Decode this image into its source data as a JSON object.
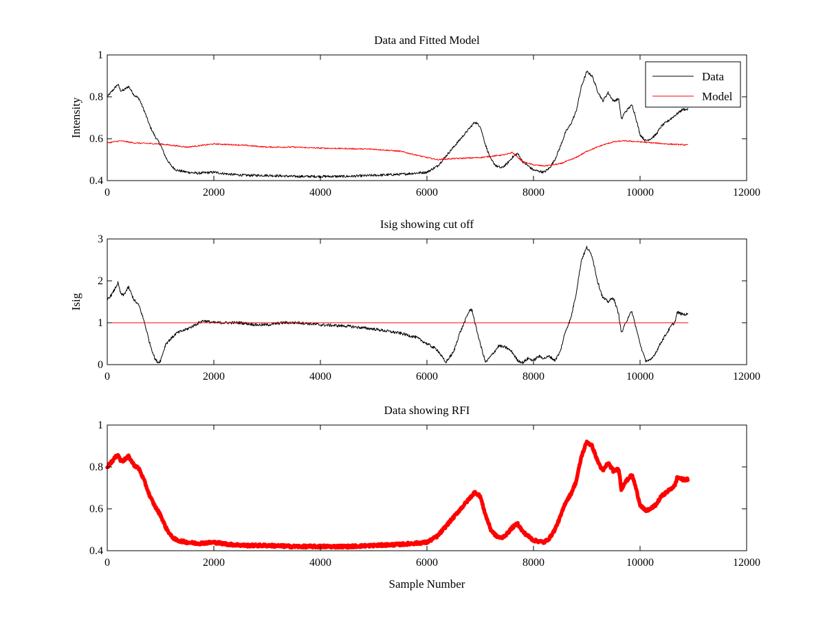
{
  "chart_data": [
    {
      "type": "line",
      "title": "Data and Fitted Model",
      "xlabel": "",
      "ylabel": "Intensity",
      "xlim": [
        0,
        12000
      ],
      "ylim": [
        0.4,
        1.0
      ],
      "xticks": [
        0,
        2000,
        4000,
        6000,
        8000,
        10000,
        12000
      ],
      "yticks": [
        0.4,
        0.6,
        0.8,
        1.0
      ],
      "ytick_labels": [
        "0.4",
        "0.6",
        "0.8",
        "1"
      ],
      "grid": false,
      "legend": {
        "position": "top-right",
        "entries": [
          "Data",
          "Model"
        ]
      },
      "series": [
        {
          "name": "Data",
          "color": "#000000",
          "noise": 0.006,
          "x": [
            0,
            100,
            200,
            250,
            300,
            400,
            500,
            600,
            700,
            800,
            900,
            1000,
            1100,
            1200,
            1300,
            1500,
            1700,
            2000,
            2300,
            2600,
            3000,
            3500,
            4000,
            4500,
            5000,
            5500,
            6000,
            6200,
            6400,
            6600,
            6800,
            6900,
            7000,
            7100,
            7200,
            7300,
            7400,
            7500,
            7600,
            7700,
            7800,
            8000,
            8200,
            8300,
            8400,
            8500,
            8600,
            8700,
            8800,
            8900,
            9000,
            9100,
            9200,
            9300,
            9400,
            9500,
            9600,
            9650,
            9700,
            9800,
            9850,
            9900,
            10000,
            10100,
            10200,
            10300,
            10400,
            10500,
            10600,
            10700,
            10800,
            10900
          ],
          "y": [
            0.8,
            0.83,
            0.86,
            0.83,
            0.83,
            0.85,
            0.81,
            0.79,
            0.73,
            0.66,
            0.61,
            0.57,
            0.51,
            0.47,
            0.45,
            0.44,
            0.435,
            0.44,
            0.43,
            0.425,
            0.425,
            0.42,
            0.42,
            0.42,
            0.425,
            0.43,
            0.44,
            0.47,
            0.53,
            0.59,
            0.65,
            0.68,
            0.66,
            0.57,
            0.5,
            0.47,
            0.46,
            0.48,
            0.51,
            0.53,
            0.49,
            0.45,
            0.44,
            0.46,
            0.5,
            0.56,
            0.63,
            0.67,
            0.73,
            0.85,
            0.92,
            0.9,
            0.83,
            0.78,
            0.82,
            0.78,
            0.79,
            0.69,
            0.72,
            0.75,
            0.76,
            0.72,
            0.62,
            0.59,
            0.6,
            0.62,
            0.66,
            0.68,
            0.7,
            0.72,
            0.74,
            0.74
          ]
        },
        {
          "name": "Model",
          "color": "#ff0000",
          "noise": 0.003,
          "x": [
            0,
            250,
            500,
            1000,
            1500,
            2000,
            2500,
            3000,
            3500,
            4000,
            5000,
            5500,
            6000,
            6200,
            6500,
            7000,
            7500,
            7600,
            7800,
            8000,
            8200,
            8500,
            8800,
            9000,
            9300,
            9500,
            9700,
            10000,
            10500,
            10900
          ],
          "y": [
            0.58,
            0.59,
            0.58,
            0.575,
            0.56,
            0.575,
            0.57,
            0.56,
            0.56,
            0.555,
            0.55,
            0.54,
            0.51,
            0.5,
            0.505,
            0.51,
            0.525,
            0.535,
            0.49,
            0.475,
            0.47,
            0.48,
            0.51,
            0.54,
            0.57,
            0.585,
            0.59,
            0.585,
            0.575,
            0.57
          ]
        }
      ]
    },
    {
      "type": "line",
      "title": "Isig showing cut off",
      "xlabel": "",
      "ylabel": "Isig",
      "xlim": [
        0,
        12000
      ],
      "ylim": [
        0,
        3
      ],
      "xticks": [
        0,
        2000,
        4000,
        6000,
        8000,
        10000,
        12000
      ],
      "yticks": [
        0,
        1,
        2,
        3
      ],
      "ytick_labels": [
        "0",
        "1",
        "2",
        "3"
      ],
      "grid": false,
      "series": [
        {
          "color": "#000000",
          "noise": 0.035,
          "x": [
            0,
            100,
            200,
            250,
            300,
            400,
            500,
            600,
            700,
            800,
            900,
            960,
            1000,
            1100,
            1300,
            1500,
            1800,
            2000,
            2200,
            2500,
            2800,
            3000,
            3300,
            3600,
            4000,
            4500,
            5000,
            5500,
            5800,
            6000,
            6200,
            6350,
            6500,
            6600,
            6700,
            6800,
            6850,
            6900,
            7000,
            7100,
            7200,
            7350,
            7500,
            7600,
            7700,
            7800,
            7900,
            8000,
            8100,
            8200,
            8300,
            8400,
            8500,
            8600,
            8700,
            8800,
            8900,
            9000,
            9100,
            9200,
            9300,
            9400,
            9500,
            9600,
            9650,
            9700,
            9800,
            9850,
            9900,
            10000,
            10100,
            10200,
            10300,
            10400,
            10500,
            10600,
            10650,
            10700,
            10800,
            10900
          ],
          "y": [
            1.55,
            1.7,
            1.95,
            1.7,
            1.65,
            1.85,
            1.55,
            1.4,
            1.0,
            0.5,
            0.12,
            0.05,
            0.1,
            0.5,
            0.75,
            0.85,
            1.05,
            1.0,
            1.0,
            1.0,
            0.95,
            0.95,
            1.0,
            1.0,
            0.95,
            0.92,
            0.85,
            0.75,
            0.65,
            0.5,
            0.35,
            0.05,
            0.3,
            0.7,
            1.0,
            1.3,
            1.3,
            1.0,
            0.5,
            0.05,
            0.2,
            0.45,
            0.4,
            0.3,
            0.1,
            0.05,
            0.15,
            0.1,
            0.2,
            0.15,
            0.2,
            0.1,
            0.3,
            0.8,
            1.1,
            1.7,
            2.5,
            2.8,
            2.6,
            2.0,
            1.6,
            1.5,
            1.6,
            1.2,
            0.75,
            0.9,
            1.2,
            1.25,
            1.0,
            0.5,
            0.1,
            0.1,
            0.3,
            0.55,
            0.75,
            0.95,
            1.0,
            1.25,
            1.2,
            1.2
          ]
        },
        {
          "color": "#ff0000",
          "noise": 0,
          "x": [
            0,
            10900
          ],
          "y": [
            1.0,
            1.0
          ]
        }
      ]
    },
    {
      "type": "line",
      "title": "Data showing RFI",
      "xlabel": "Sample Number",
      "ylabel": "",
      "xlim": [
        0,
        12000
      ],
      "ylim": [
        0.4,
        1.0
      ],
      "xticks": [
        0,
        2000,
        4000,
        6000,
        8000,
        10000,
        12000
      ],
      "yticks": [
        0.4,
        0.6,
        0.8,
        1.0
      ],
      "ytick_labels": [
        "0.4",
        "0.6",
        "0.8",
        "1"
      ],
      "grid": false,
      "series": [
        {
          "color": "#ff0000",
          "noise": 0.006,
          "thick": true,
          "x": [
            0,
            100,
            200,
            250,
            300,
            400,
            500,
            600,
            700,
            800,
            900,
            1000,
            1100,
            1200,
            1300,
            1500,
            1700,
            2000,
            2300,
            2600,
            3000,
            3500,
            4000,
            4500,
            5000,
            5500,
            6000,
            6200,
            6400,
            6600,
            6800,
            6900,
            7000,
            7100,
            7200,
            7300,
            7400,
            7500,
            7600,
            7700,
            7800,
            8000,
            8200,
            8300,
            8400,
            8500,
            8600,
            8700,
            8800,
            8900,
            9000,
            9100,
            9200,
            9300,
            9400,
            9500,
            9600,
            9650,
            9700,
            9800,
            9850,
            9900,
            10000,
            10100,
            10200,
            10300,
            10400,
            10500,
            10600,
            10650,
            10700,
            10800,
            10900
          ],
          "y": [
            0.8,
            0.83,
            0.86,
            0.83,
            0.83,
            0.85,
            0.81,
            0.79,
            0.73,
            0.66,
            0.61,
            0.57,
            0.51,
            0.47,
            0.45,
            0.44,
            0.435,
            0.44,
            0.43,
            0.425,
            0.425,
            0.42,
            0.42,
            0.42,
            0.425,
            0.43,
            0.44,
            0.47,
            0.53,
            0.59,
            0.65,
            0.68,
            0.66,
            0.57,
            0.5,
            0.47,
            0.46,
            0.48,
            0.51,
            0.53,
            0.49,
            0.45,
            0.44,
            0.46,
            0.5,
            0.56,
            0.63,
            0.67,
            0.73,
            0.85,
            0.92,
            0.9,
            0.83,
            0.78,
            0.82,
            0.78,
            0.79,
            0.69,
            0.72,
            0.75,
            0.76,
            0.72,
            0.62,
            0.59,
            0.6,
            0.62,
            0.66,
            0.68,
            0.7,
            0.71,
            0.75,
            0.74,
            0.74
          ]
        }
      ]
    }
  ]
}
